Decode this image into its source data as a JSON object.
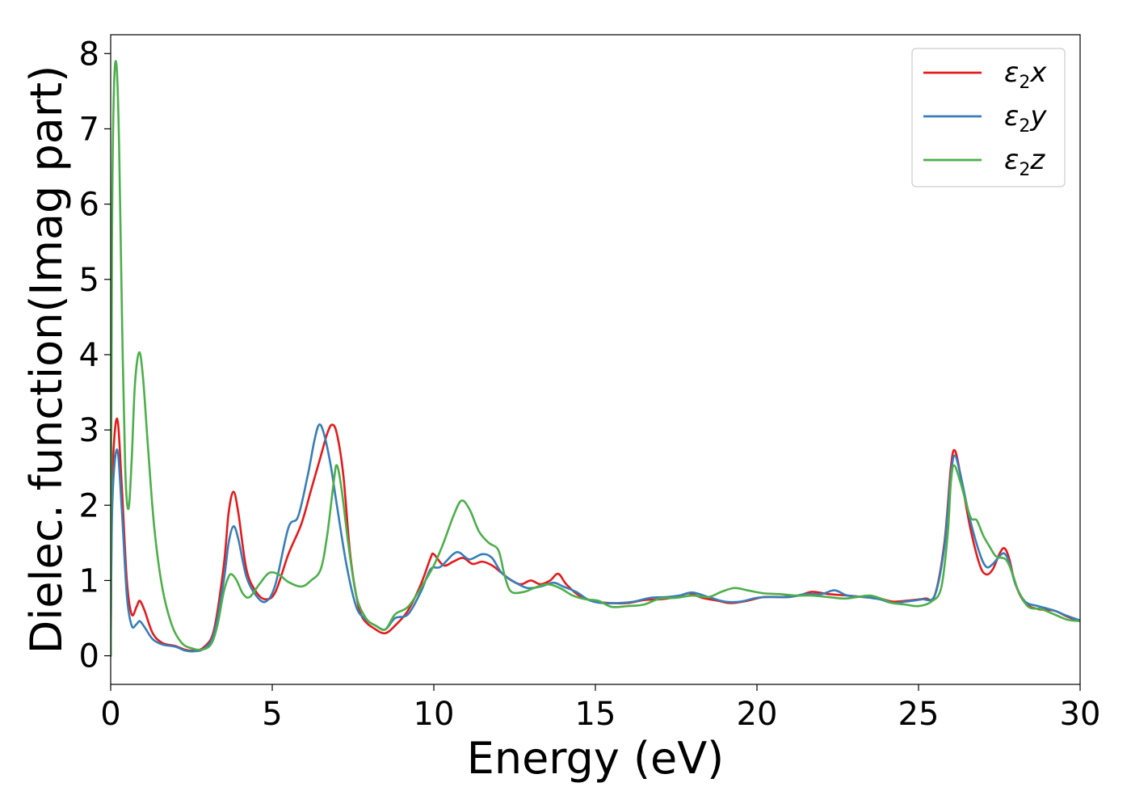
{
  "chart_data": {
    "type": "line",
    "xlabel": "Energy (eV)",
    "ylabel": "Dielec. function(Imag part)",
    "xlim": [
      0,
      30
    ],
    "ylim": [
      -0.38,
      8.25
    ],
    "x_ticks": [
      0,
      5,
      10,
      15,
      20,
      25,
      30
    ],
    "x_tick_labels": [
      "0",
      "5",
      "10",
      "15",
      "20",
      "25",
      "30"
    ],
    "y_ticks": [
      0,
      1,
      2,
      3,
      4,
      5,
      6,
      7,
      8
    ],
    "y_tick_labels": [
      "0",
      "1",
      "2",
      "3",
      "4",
      "5",
      "6",
      "7",
      "8"
    ],
    "grid": false,
    "legend_position": "top-right",
    "series": [
      {
        "name": "ε2x",
        "legend": {
          "symbol": "ε",
          "sub": "2",
          "suffix": "x"
        },
        "color": "#e41a1c",
        "points": [
          [
            0,
            0
          ],
          [
            0.05,
            2.3
          ],
          [
            0.2,
            3.15
          ],
          [
            0.35,
            2.2
          ],
          [
            0.5,
            1.0
          ],
          [
            0.65,
            0.55
          ],
          [
            0.8,
            0.65
          ],
          [
            0.9,
            0.73
          ],
          [
            1.05,
            0.6
          ],
          [
            1.3,
            0.3
          ],
          [
            1.6,
            0.17
          ],
          [
            2.0,
            0.13
          ],
          [
            2.3,
            0.08
          ],
          [
            2.6,
            0.07
          ],
          [
            2.9,
            0.12
          ],
          [
            3.2,
            0.35
          ],
          [
            3.5,
            1.2
          ],
          [
            3.65,
            1.9
          ],
          [
            3.8,
            2.18
          ],
          [
            3.95,
            1.9
          ],
          [
            4.2,
            1.15
          ],
          [
            4.5,
            0.85
          ],
          [
            4.8,
            0.75
          ],
          [
            5.1,
            0.85
          ],
          [
            5.5,
            1.35
          ],
          [
            5.9,
            1.75
          ],
          [
            6.2,
            2.2
          ],
          [
            6.5,
            2.65
          ],
          [
            6.7,
            2.95
          ],
          [
            6.85,
            3.07
          ],
          [
            7.0,
            2.95
          ],
          [
            7.2,
            2.4
          ],
          [
            7.4,
            1.4
          ],
          [
            7.6,
            0.8
          ],
          [
            7.8,
            0.5
          ],
          [
            8.2,
            0.35
          ],
          [
            8.5,
            0.3
          ],
          [
            8.8,
            0.4
          ],
          [
            9.2,
            0.6
          ],
          [
            9.6,
            0.95
          ],
          [
            9.9,
            1.3
          ],
          [
            10.0,
            1.35
          ],
          [
            10.3,
            1.2
          ],
          [
            10.6,
            1.25
          ],
          [
            10.9,
            1.3
          ],
          [
            11.2,
            1.22
          ],
          [
            11.5,
            1.25
          ],
          [
            11.8,
            1.2
          ],
          [
            12.1,
            1.1
          ],
          [
            12.4,
            1.0
          ],
          [
            12.7,
            0.95
          ],
          [
            13.0,
            1.0
          ],
          [
            13.3,
            0.95
          ],
          [
            13.6,
            1.0
          ],
          [
            13.85,
            1.09
          ],
          [
            14.1,
            0.95
          ],
          [
            14.5,
            0.8
          ],
          [
            15.0,
            0.72
          ],
          [
            15.5,
            0.7
          ],
          [
            16.0,
            0.7
          ],
          [
            16.5,
            0.74
          ],
          [
            17.0,
            0.75
          ],
          [
            17.5,
            0.78
          ],
          [
            17.9,
            0.83
          ],
          [
            18.3,
            0.77
          ],
          [
            18.8,
            0.73
          ],
          [
            19.2,
            0.7
          ],
          [
            19.7,
            0.73
          ],
          [
            20.2,
            0.78
          ],
          [
            20.8,
            0.78
          ],
          [
            21.3,
            0.8
          ],
          [
            21.7,
            0.85
          ],
          [
            22.2,
            0.82
          ],
          [
            22.8,
            0.8
          ],
          [
            23.3,
            0.78
          ],
          [
            23.8,
            0.76
          ],
          [
            24.2,
            0.72
          ],
          [
            24.6,
            0.73
          ],
          [
            25.2,
            0.76
          ],
          [
            25.5,
            0.8
          ],
          [
            25.8,
            1.5
          ],
          [
            26.0,
            2.5
          ],
          [
            26.12,
            2.73
          ],
          [
            26.3,
            2.4
          ],
          [
            26.6,
            1.7
          ],
          [
            26.9,
            1.2
          ],
          [
            27.1,
            1.08
          ],
          [
            27.3,
            1.15
          ],
          [
            27.5,
            1.35
          ],
          [
            27.65,
            1.43
          ],
          [
            27.8,
            1.3
          ],
          [
            28.0,
            0.95
          ],
          [
            28.3,
            0.7
          ],
          [
            28.7,
            0.62
          ],
          [
            29.2,
            0.6
          ],
          [
            29.6,
            0.52
          ],
          [
            30.0,
            0.46
          ]
        ]
      },
      {
        "name": "ε2y",
        "legend": {
          "symbol": "ε",
          "sub": "2",
          "suffix": "y"
        },
        "color": "#377eb8",
        "points": [
          [
            0,
            0
          ],
          [
            0.05,
            2.0
          ],
          [
            0.2,
            2.74
          ],
          [
            0.35,
            1.9
          ],
          [
            0.5,
            0.8
          ],
          [
            0.65,
            0.4
          ],
          [
            0.8,
            0.42
          ],
          [
            0.9,
            0.46
          ],
          [
            1.05,
            0.38
          ],
          [
            1.3,
            0.22
          ],
          [
            1.6,
            0.15
          ],
          [
            2.0,
            0.12
          ],
          [
            2.3,
            0.07
          ],
          [
            2.6,
            0.06
          ],
          [
            2.9,
            0.1
          ],
          [
            3.2,
            0.3
          ],
          [
            3.5,
            1.0
          ],
          [
            3.65,
            1.5
          ],
          [
            3.8,
            1.72
          ],
          [
            3.95,
            1.55
          ],
          [
            4.2,
            1.05
          ],
          [
            4.5,
            0.8
          ],
          [
            4.8,
            0.72
          ],
          [
            5.1,
            0.95
          ],
          [
            5.5,
            1.7
          ],
          [
            5.8,
            1.85
          ],
          [
            6.1,
            2.4
          ],
          [
            6.3,
            2.85
          ],
          [
            6.45,
            3.07
          ],
          [
            6.6,
            2.95
          ],
          [
            6.8,
            2.55
          ],
          [
            7.0,
            2.0
          ],
          [
            7.3,
            1.2
          ],
          [
            7.6,
            0.65
          ],
          [
            7.9,
            0.48
          ],
          [
            8.2,
            0.4
          ],
          [
            8.5,
            0.35
          ],
          [
            8.8,
            0.5
          ],
          [
            9.2,
            0.55
          ],
          [
            9.6,
            0.85
          ],
          [
            9.9,
            1.15
          ],
          [
            10.2,
            1.18
          ],
          [
            10.6,
            1.35
          ],
          [
            10.8,
            1.37
          ],
          [
            11.1,
            1.28
          ],
          [
            11.5,
            1.35
          ],
          [
            11.8,
            1.3
          ],
          [
            12.1,
            1.1
          ],
          [
            12.5,
            0.98
          ],
          [
            12.9,
            0.9
          ],
          [
            13.3,
            0.92
          ],
          [
            13.7,
            0.97
          ],
          [
            14.0,
            0.92
          ],
          [
            14.4,
            0.85
          ],
          [
            14.8,
            0.74
          ],
          [
            15.2,
            0.7
          ],
          [
            15.7,
            0.7
          ],
          [
            16.2,
            0.72
          ],
          [
            16.7,
            0.77
          ],
          [
            17.2,
            0.78
          ],
          [
            17.6,
            0.8
          ],
          [
            18.0,
            0.84
          ],
          [
            18.5,
            0.78
          ],
          [
            19.0,
            0.72
          ],
          [
            19.5,
            0.72
          ],
          [
            20.0,
            0.77
          ],
          [
            20.5,
            0.78
          ],
          [
            21.0,
            0.78
          ],
          [
            21.5,
            0.82
          ],
          [
            22.0,
            0.82
          ],
          [
            22.4,
            0.87
          ],
          [
            22.8,
            0.8
          ],
          [
            23.3,
            0.78
          ],
          [
            23.8,
            0.75
          ],
          [
            24.2,
            0.7
          ],
          [
            24.6,
            0.72
          ],
          [
            25.1,
            0.75
          ],
          [
            25.5,
            0.8
          ],
          [
            25.8,
            1.45
          ],
          [
            26.0,
            2.4
          ],
          [
            26.12,
            2.66
          ],
          [
            26.3,
            2.4
          ],
          [
            26.6,
            1.8
          ],
          [
            26.9,
            1.35
          ],
          [
            27.1,
            1.18
          ],
          [
            27.3,
            1.22
          ],
          [
            27.5,
            1.32
          ],
          [
            27.65,
            1.36
          ],
          [
            27.8,
            1.25
          ],
          [
            28.0,
            0.95
          ],
          [
            28.3,
            0.72
          ],
          [
            28.7,
            0.66
          ],
          [
            29.2,
            0.6
          ],
          [
            29.6,
            0.53
          ],
          [
            30.0,
            0.47
          ]
        ]
      },
      {
        "name": "ε2z",
        "legend": {
          "symbol": "ε",
          "sub": "2",
          "suffix": "z"
        },
        "color": "#4daf4a",
        "points": [
          [
            0,
            0
          ],
          [
            0.04,
            5.5
          ],
          [
            0.1,
            7.5
          ],
          [
            0.18,
            7.85
          ],
          [
            0.26,
            6.8
          ],
          [
            0.35,
            4.5
          ],
          [
            0.45,
            2.5
          ],
          [
            0.55,
            1.95
          ],
          [
            0.65,
            2.6
          ],
          [
            0.75,
            3.6
          ],
          [
            0.88,
            4.03
          ],
          [
            1.0,
            3.7
          ],
          [
            1.15,
            2.8
          ],
          [
            1.35,
            1.7
          ],
          [
            1.6,
            0.9
          ],
          [
            1.9,
            0.4
          ],
          [
            2.2,
            0.17
          ],
          [
            2.5,
            0.1
          ],
          [
            2.8,
            0.08
          ],
          [
            3.1,
            0.15
          ],
          [
            3.3,
            0.4
          ],
          [
            3.5,
            0.85
          ],
          [
            3.65,
            1.05
          ],
          [
            3.75,
            1.08
          ],
          [
            3.9,
            1.0
          ],
          [
            4.1,
            0.82
          ],
          [
            4.3,
            0.78
          ],
          [
            4.6,
            0.95
          ],
          [
            4.9,
            1.1
          ],
          [
            5.2,
            1.08
          ],
          [
            5.5,
            0.98
          ],
          [
            5.9,
            0.92
          ],
          [
            6.2,
            1.0
          ],
          [
            6.5,
            1.15
          ],
          [
            6.7,
            1.6
          ],
          [
            6.9,
            2.3
          ],
          [
            7.0,
            2.53
          ],
          [
            7.15,
            2.2
          ],
          [
            7.35,
            1.5
          ],
          [
            7.6,
            0.8
          ],
          [
            7.9,
            0.5
          ],
          [
            8.2,
            0.4
          ],
          [
            8.5,
            0.35
          ],
          [
            8.8,
            0.55
          ],
          [
            9.2,
            0.65
          ],
          [
            9.6,
            0.9
          ],
          [
            10.0,
            1.2
          ],
          [
            10.3,
            1.5
          ],
          [
            10.6,
            1.85
          ],
          [
            10.85,
            2.06
          ],
          [
            11.1,
            1.95
          ],
          [
            11.4,
            1.65
          ],
          [
            11.7,
            1.5
          ],
          [
            12.0,
            1.4
          ],
          [
            12.2,
            1.05
          ],
          [
            12.4,
            0.85
          ],
          [
            12.8,
            0.85
          ],
          [
            13.1,
            0.9
          ],
          [
            13.5,
            0.95
          ],
          [
            13.9,
            0.9
          ],
          [
            14.3,
            0.8
          ],
          [
            14.7,
            0.75
          ],
          [
            15.1,
            0.73
          ],
          [
            15.5,
            0.65
          ],
          [
            16.0,
            0.66
          ],
          [
            16.5,
            0.68
          ],
          [
            17.0,
            0.76
          ],
          [
            17.5,
            0.77
          ],
          [
            18.0,
            0.8
          ],
          [
            18.5,
            0.78
          ],
          [
            18.9,
            0.85
          ],
          [
            19.3,
            0.9
          ],
          [
            19.7,
            0.87
          ],
          [
            20.2,
            0.83
          ],
          [
            20.7,
            0.82
          ],
          [
            21.2,
            0.8
          ],
          [
            21.7,
            0.8
          ],
          [
            22.2,
            0.78
          ],
          [
            22.7,
            0.76
          ],
          [
            23.1,
            0.78
          ],
          [
            23.5,
            0.8
          ],
          [
            23.9,
            0.75
          ],
          [
            24.2,
            0.7
          ],
          [
            24.6,
            0.68
          ],
          [
            25.0,
            0.66
          ],
          [
            25.4,
            0.72
          ],
          [
            25.7,
            0.9
          ],
          [
            25.9,
            1.6
          ],
          [
            26.0,
            2.3
          ],
          [
            26.1,
            2.53
          ],
          [
            26.3,
            2.3
          ],
          [
            26.6,
            1.85
          ],
          [
            26.8,
            1.8
          ],
          [
            27.0,
            1.6
          ],
          [
            27.2,
            1.45
          ],
          [
            27.4,
            1.32
          ],
          [
            27.7,
            1.28
          ],
          [
            27.9,
            1.1
          ],
          [
            28.1,
            0.85
          ],
          [
            28.4,
            0.65
          ],
          [
            28.8,
            0.62
          ],
          [
            29.2,
            0.55
          ],
          [
            29.6,
            0.48
          ],
          [
            30.0,
            0.46
          ]
        ]
      }
    ]
  }
}
